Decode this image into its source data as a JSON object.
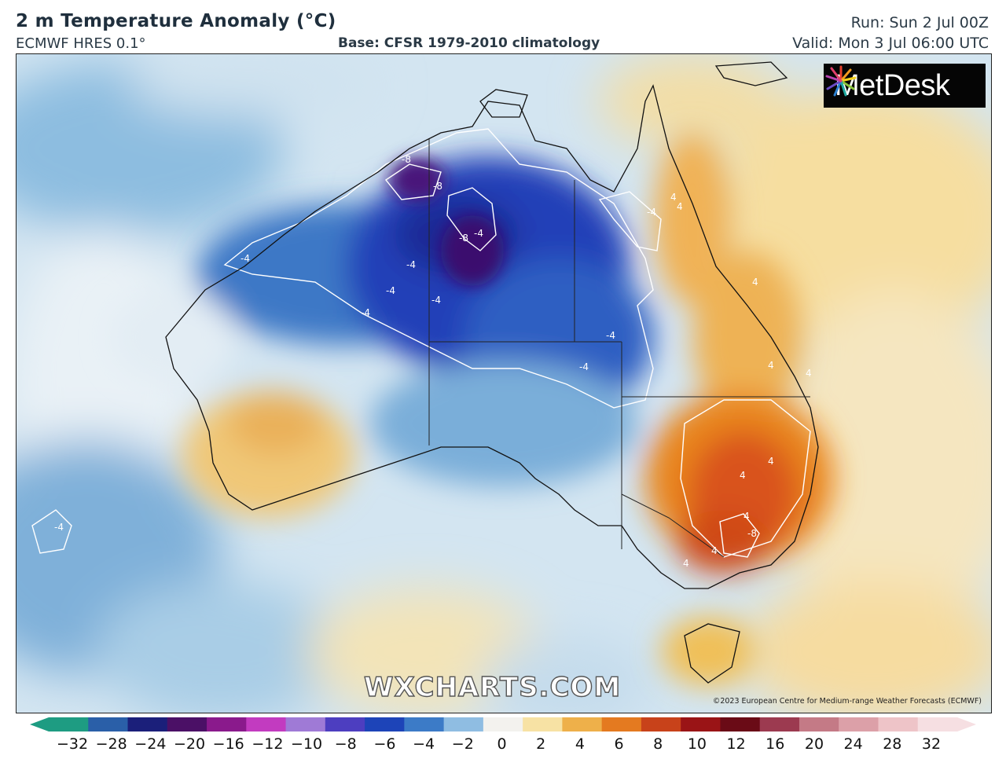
{
  "header": {
    "title": "2 m Temperature Anomaly (°C)",
    "model": "ECMWF HRES 0.1°",
    "base": "Base: CFSR 1979-2010 climatology",
    "run": "Run: Sun 2 Jul 00Z",
    "valid": "Valid: Mon 3 Jul 06:00 UTC"
  },
  "logo": {
    "text": "MetDesk",
    "icon": "metdesk-burst-icon"
  },
  "watermark": "WXCHARTS.COM",
  "copyright": "©2023 European Centre for Medium-range Weather Forecasts (ECMWF)",
  "contour_labels": [
    "-8",
    "-8",
    "-8",
    "-4",
    "-4",
    "-4",
    "-4",
    "-4",
    "-4",
    "-4",
    "-4",
    "-4",
    "-4",
    "4",
    "4",
    "4",
    "4",
    "4",
    "4",
    "4",
    "4",
    "4",
    "4",
    "-8"
  ],
  "colorbar": {
    "ticks": [
      "−32",
      "−28",
      "−24",
      "−20",
      "−16",
      "−12",
      "−10",
      "−8",
      "−6",
      "−4",
      "−2",
      "0",
      "2",
      "4",
      "6",
      "8",
      "10",
      "12",
      "16",
      "20",
      "24",
      "28",
      "32"
    ],
    "colors": [
      "#1e9c82",
      "#2a5fa8",
      "#1b1f7a",
      "#4b1066",
      "#8a1a8c",
      "#c23bc0",
      "#9f7ad6",
      "#4d3ec0",
      "#1d44b8",
      "#3c7bc7",
      "#8fbde2",
      "#f3f2ee",
      "#f7e2a4",
      "#eeb04a",
      "#e47a20",
      "#c8421a",
      "#9a1416",
      "#6a0b16",
      "#9c3a50",
      "#c47a86",
      "#dca0a8",
      "#eec4c8",
      "#f6dfe2"
    ]
  }
}
